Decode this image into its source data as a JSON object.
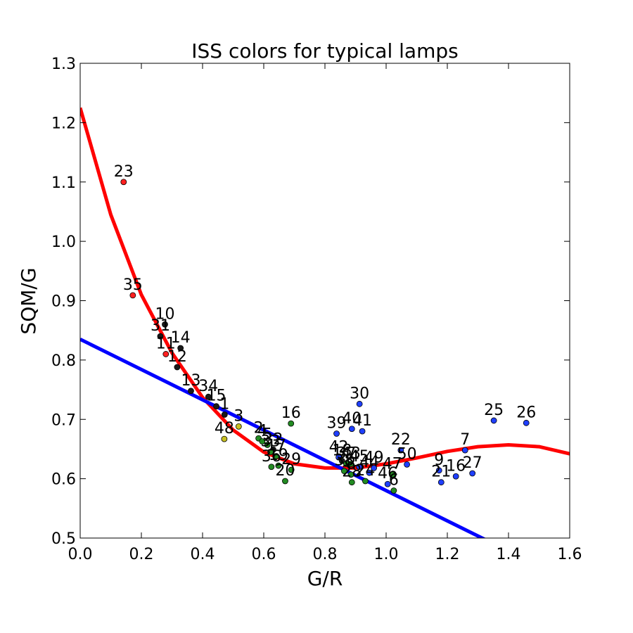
{
  "chart_data": {
    "type": "scatter",
    "title": "ISS colors for typical lamps",
    "xlabel": "G/R",
    "ylabel": "SQM/G",
    "xlim": [
      0.0,
      1.6
    ],
    "ylim": [
      0.5,
      1.3
    ],
    "xticks": [
      "0.0",
      "0.2",
      "0.4",
      "0.6",
      "0.8",
      "1.0",
      "1.2",
      "1.4",
      "1.6"
    ],
    "yticks": [
      "0.5",
      "0.6",
      "0.7",
      "0.8",
      "0.9",
      "1.0",
      "1.1",
      "1.2",
      "1.3"
    ],
    "grid": false,
    "colors": {
      "red": "#ff2020",
      "black": "#1a1a1a",
      "green": "#228b22",
      "blue": "#1f3fff",
      "yellow": "#c8c020",
      "fit_curve": "#ff0000",
      "fit_line": "#0000ff"
    },
    "points": [
      {
        "label": "23",
        "x": 0.142,
        "y": 1.1,
        "color": "red"
      },
      {
        "label": "35",
        "x": 0.172,
        "y": 0.909,
        "color": "red"
      },
      {
        "label": "10",
        "x": 0.277,
        "y": 0.86,
        "color": "black"
      },
      {
        "label": "14",
        "x": 0.328,
        "y": 0.82,
        "color": "black"
      },
      {
        "label": "31",
        "x": 0.262,
        "y": 0.84,
        "color": "black"
      },
      {
        "label": "11",
        "x": 0.28,
        "y": 0.81,
        "color": "red"
      },
      {
        "label": "12",
        "x": 0.317,
        "y": 0.788,
        "color": "black"
      },
      {
        "label": "13",
        "x": 0.362,
        "y": 0.748,
        "color": "black"
      },
      {
        "label": "34",
        "x": 0.419,
        "y": 0.738,
        "color": "black"
      },
      {
        "label": "15",
        "x": 0.445,
        "y": 0.722,
        "color": "black"
      },
      {
        "label": "1",
        "x": 0.472,
        "y": 0.708,
        "color": "black"
      },
      {
        "label": "48",
        "x": 0.471,
        "y": 0.667,
        "color": "yellow"
      },
      {
        "label": "3",
        "x": 0.518,
        "y": 0.688,
        "color": "yellow"
      },
      {
        "label": "2",
        "x": 0.583,
        "y": 0.668,
        "color": "green"
      },
      {
        "label": "4",
        "x": 0.595,
        "y": 0.663,
        "color": "green"
      },
      {
        "label": "5",
        "x": 0.612,
        "y": 0.657,
        "color": "green"
      },
      {
        "label": "16",
        "x": 0.689,
        "y": 0.693,
        "color": "green"
      },
      {
        "label": "32",
        "x": 0.631,
        "y": 0.649,
        "color": "black"
      },
      {
        "label": "33",
        "x": 0.622,
        "y": 0.645,
        "color": "green"
      },
      {
        "label": "17",
        "x": 0.641,
        "y": 0.638,
        "color": "green"
      },
      {
        "label": "36",
        "x": 0.625,
        "y": 0.62,
        "color": "green"
      },
      {
        "label": "19",
        "x": 0.648,
        "y": 0.622,
        "color": "green"
      },
      {
        "label": "29",
        "x": 0.69,
        "y": 0.615,
        "color": "green"
      },
      {
        "label": "20",
        "x": 0.67,
        "y": 0.596,
        "color": "green"
      },
      {
        "label": "39",
        "x": 0.838,
        "y": 0.676,
        "color": "blue"
      },
      {
        "label": "40",
        "x": 0.888,
        "y": 0.684,
        "color": "blue"
      },
      {
        "label": "41",
        "x": 0.922,
        "y": 0.68,
        "color": "blue"
      },
      {
        "label": "30",
        "x": 0.913,
        "y": 0.726,
        "color": "blue"
      },
      {
        "label": "42",
        "x": 0.845,
        "y": 0.636,
        "color": "blue"
      },
      {
        "label": "18",
        "x": 0.856,
        "y": 0.63,
        "color": "black"
      },
      {
        "label": "37",
        "x": 0.87,
        "y": 0.625,
        "color": "green"
      },
      {
        "label": "43",
        "x": 0.885,
        "y": 0.625,
        "color": "green"
      },
      {
        "label": "45",
        "x": 0.912,
        "y": 0.62,
        "color": "blue"
      },
      {
        "label": "38",
        "x": 0.863,
        "y": 0.613,
        "color": "green"
      },
      {
        "label": "8",
        "x": 0.885,
        "y": 0.607,
        "color": "green"
      },
      {
        "label": "28",
        "x": 0.888,
        "y": 0.594,
        "color": "green"
      },
      {
        "label": "44",
        "x": 0.945,
        "y": 0.61,
        "color": "blue"
      },
      {
        "label": "24",
        "x": 0.932,
        "y": 0.596,
        "color": "green"
      },
      {
        "label": "47",
        "x": 1.02,
        "y": 0.607,
        "color": "green"
      },
      {
        "label": "46",
        "x": 1.005,
        "y": 0.591,
        "color": "blue"
      },
      {
        "label": "6",
        "x": 1.025,
        "y": 0.58,
        "color": "green"
      },
      {
        "label": "22",
        "x": 1.048,
        "y": 0.648,
        "color": "blue"
      },
      {
        "label": "50",
        "x": 1.068,
        "y": 0.624,
        "color": "blue"
      },
      {
        "label": "49",
        "x": 0.96,
        "y": 0.618,
        "color": "blue"
      },
      {
        "label": "9",
        "x": 1.173,
        "y": 0.614,
        "color": "blue"
      },
      {
        "label": "21",
        "x": 1.18,
        "y": 0.594,
        "color": "blue"
      },
      {
        "label": "16",
        "x": 1.228,
        "y": 0.604,
        "color": "blue"
      },
      {
        "label": "27",
        "x": 1.282,
        "y": 0.609,
        "color": "blue"
      },
      {
        "label": "7",
        "x": 1.258,
        "y": 0.648,
        "color": "blue"
      },
      {
        "label": "25",
        "x": 1.352,
        "y": 0.698,
        "color": "blue"
      },
      {
        "label": "26",
        "x": 1.458,
        "y": 0.694,
        "color": "blue"
      }
    ],
    "fit_line": {
      "intercept": 0.835,
      "slope": -0.255
    },
    "fit_curve": {
      "x": [
        0.0,
        0.1,
        0.2,
        0.3,
        0.4,
        0.5,
        0.6,
        0.7,
        0.8,
        0.9,
        1.0,
        1.1,
        1.2,
        1.3,
        1.4,
        1.5,
        1.6
      ],
      "y": [
        1.225,
        1.045,
        0.91,
        0.812,
        0.737,
        0.682,
        0.645,
        0.625,
        0.618,
        0.618,
        0.625,
        0.635,
        0.646,
        0.654,
        0.657,
        0.654,
        0.642
      ]
    }
  }
}
